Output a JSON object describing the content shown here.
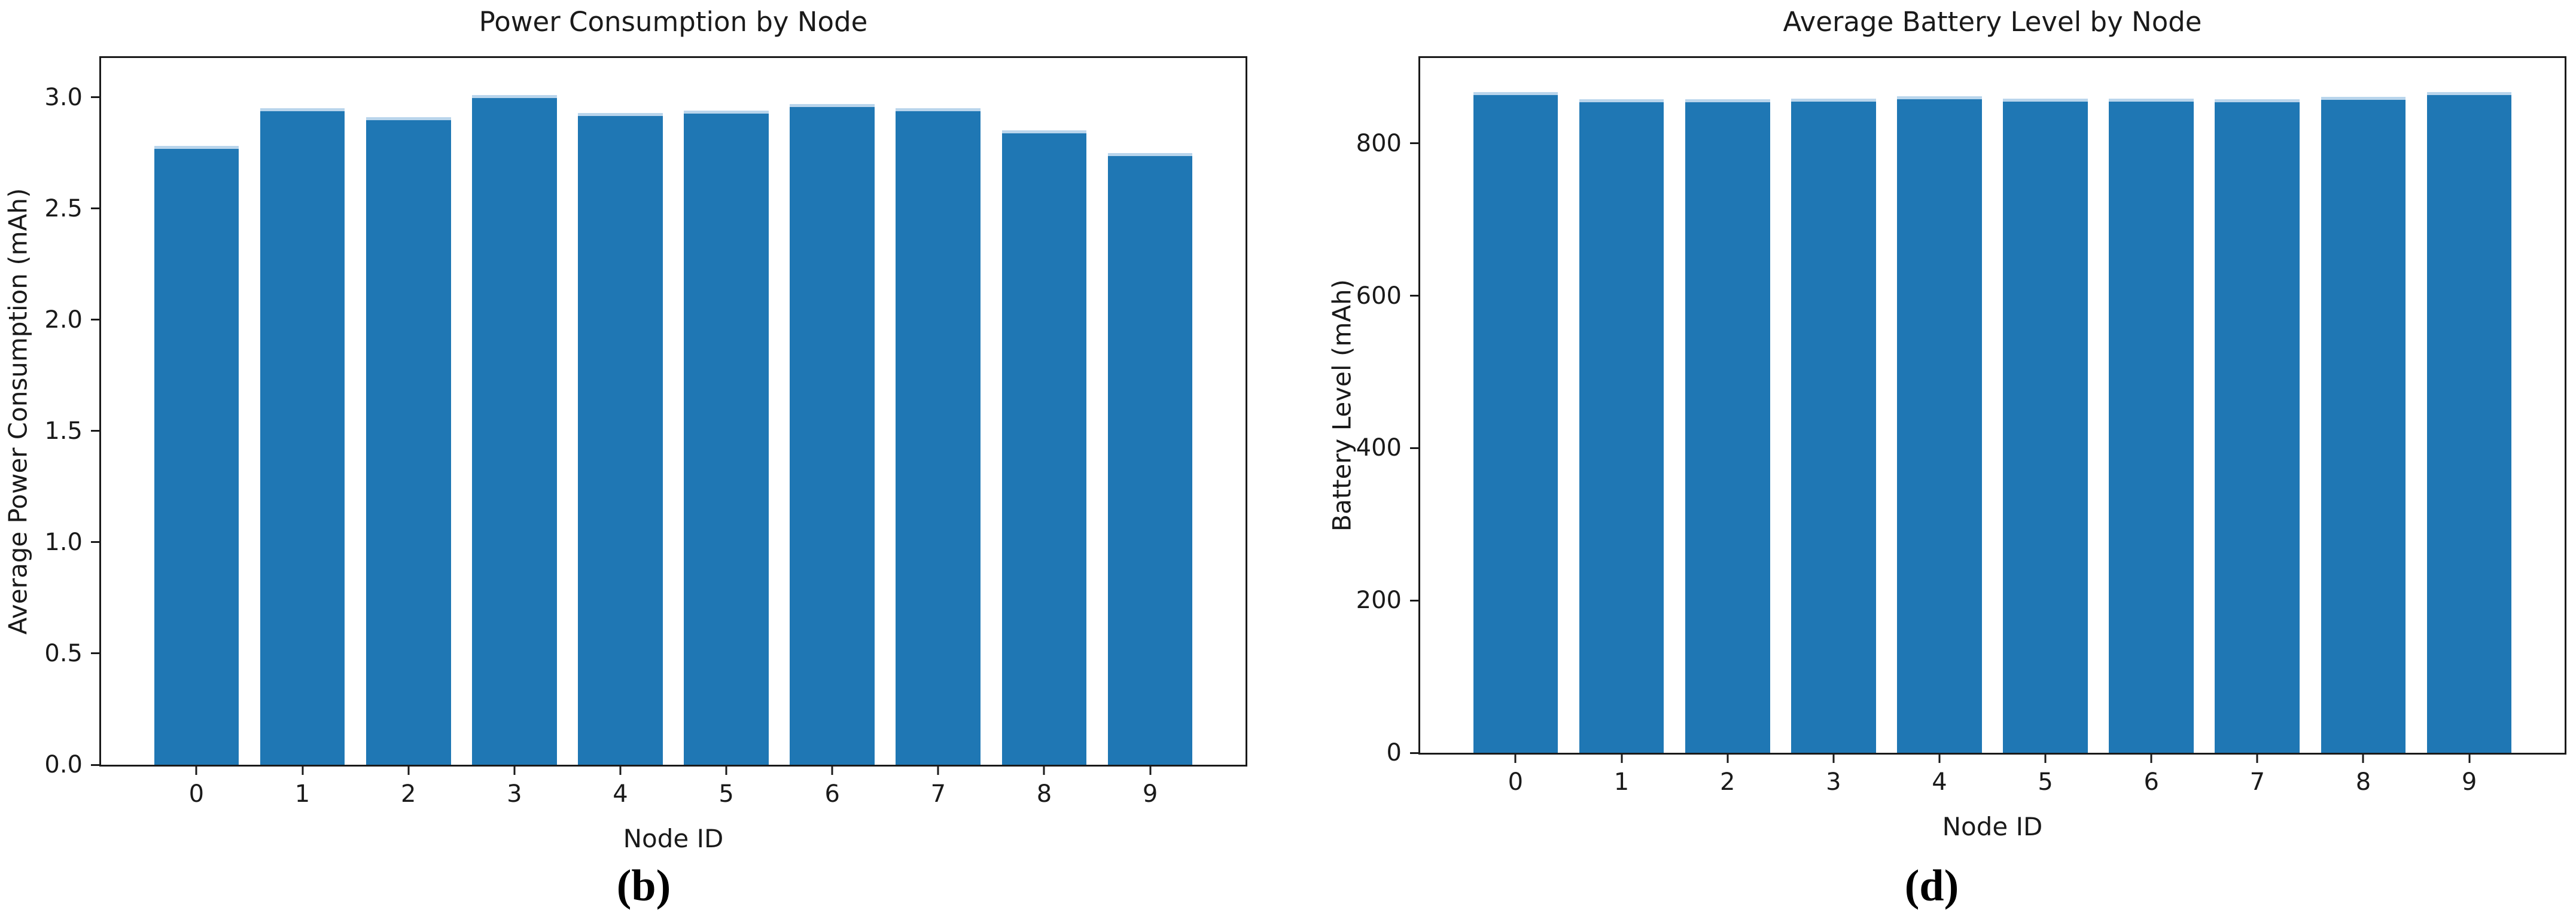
{
  "figure": {
    "bar_color": "#1f77b4",
    "bar_cap_color": "#b9d5ec",
    "spine_color": "#1a1a1a",
    "background_color": "#ffffff"
  },
  "chart_data": [
    {
      "type": "bar",
      "title": "Power Consumption by Node",
      "xlabel": "Node ID",
      "ylabel": "Average Power Consumption (mAh)",
      "caption": "(b)",
      "categories": [
        "0",
        "1",
        "2",
        "3",
        "4",
        "5",
        "6",
        "7",
        "8",
        "9"
      ],
      "values": [
        2.78,
        2.95,
        2.91,
        3.01,
        2.93,
        2.94,
        2.97,
        2.95,
        2.85,
        2.75
      ],
      "yticks": [
        0.0,
        0.5,
        1.0,
        1.5,
        2.0,
        2.5,
        3.0
      ],
      "ytick_labels": [
        "0.0",
        "0.5",
        "1.0",
        "1.5",
        "2.0",
        "2.5",
        "3.0"
      ],
      "ylim": [
        0,
        3.176
      ],
      "grid": false,
      "legend": "none"
    },
    {
      "type": "bar",
      "title": "Average Battery Level by Node",
      "xlabel": "Node ID",
      "ylabel": "Battery Level (mAh)",
      "caption": "(d)",
      "categories": [
        "0",
        "1",
        "2",
        "3",
        "4",
        "5",
        "6",
        "7",
        "8",
        "9"
      ],
      "values": [
        867,
        858,
        858,
        859,
        862,
        859,
        859,
        858,
        861,
        867
      ],
      "yticks": [
        0,
        200,
        400,
        600,
        800
      ],
      "ytick_labels": [
        "0",
        "200",
        "400",
        "600",
        "800"
      ],
      "ylim": [
        0,
        912
      ],
      "grid": false,
      "legend": "none"
    }
  ]
}
